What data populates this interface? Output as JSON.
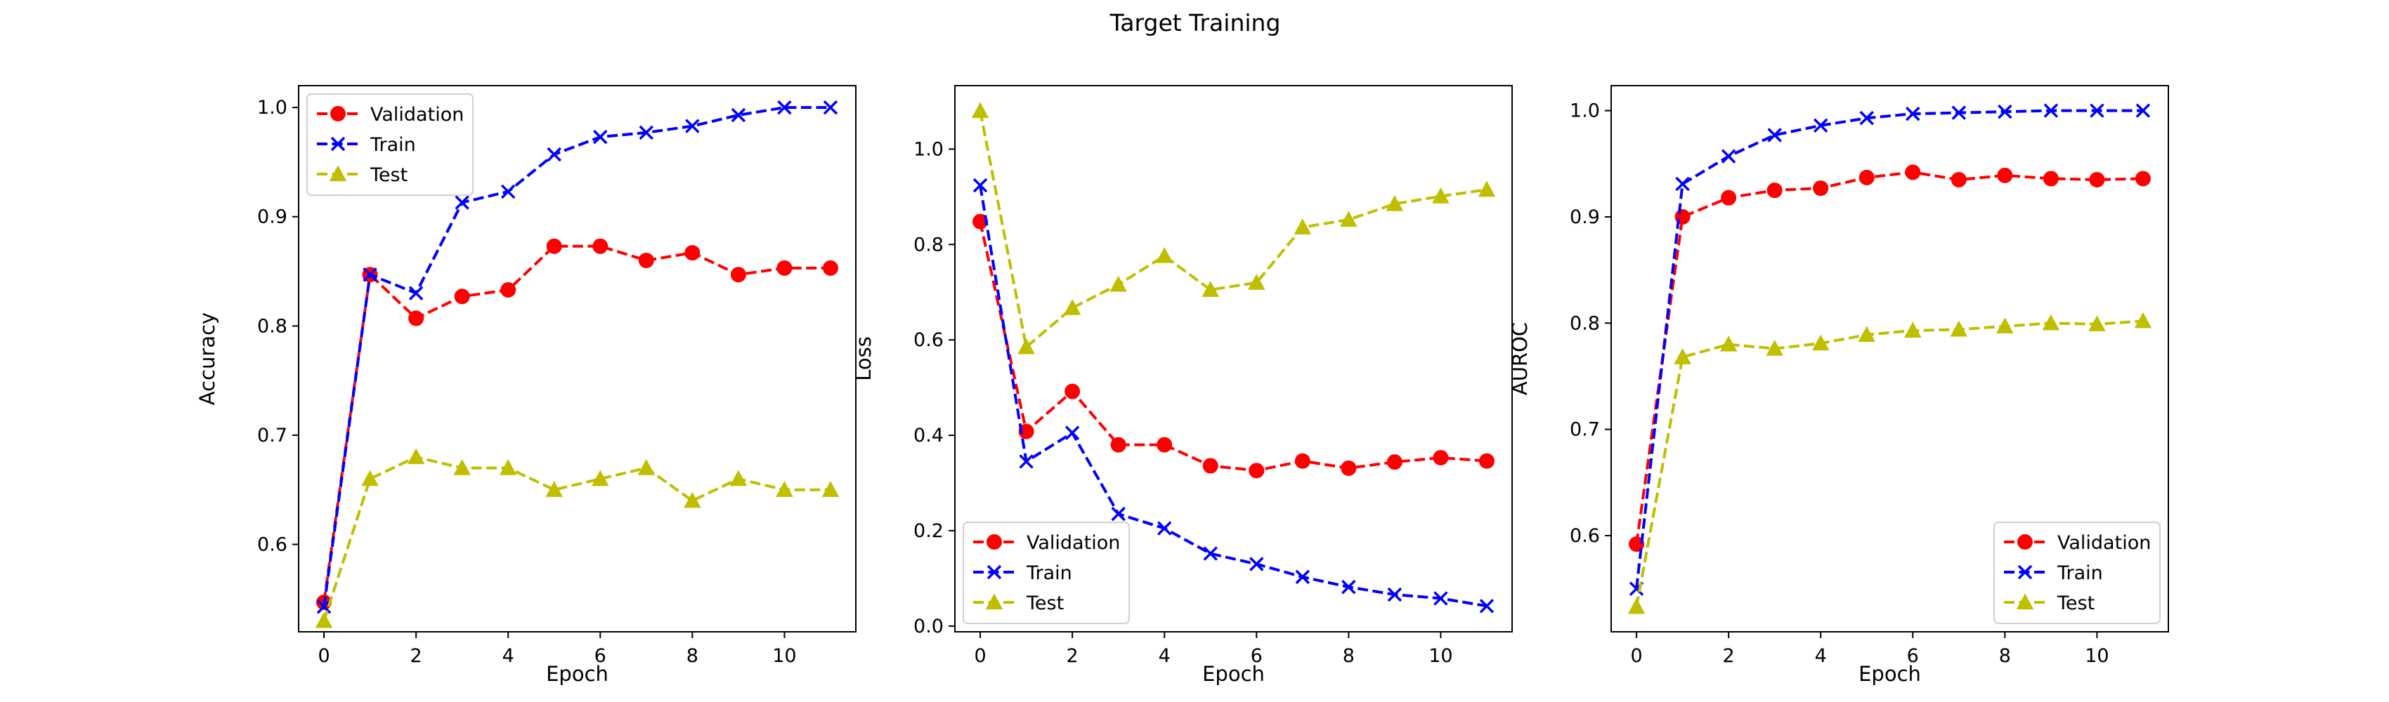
{
  "figure": {
    "title": "Target Training"
  },
  "chart_data": [
    {
      "type": "line",
      "title": "",
      "xlabel": "Epoch",
      "ylabel": "Accuracy",
      "x": [
        0,
        1,
        2,
        3,
        4,
        5,
        6,
        7,
        8,
        9,
        10,
        11
      ],
      "xlim": [
        -0.55,
        11.55
      ],
      "ylim": [
        0.52,
        1.02
      ],
      "xticks": [
        0,
        2,
        4,
        6,
        8,
        10
      ],
      "yticks": [
        0.6,
        0.7,
        0.8,
        0.9,
        1.0
      ],
      "ytick_labels": [
        "0.6",
        "0.7",
        "0.8",
        "0.9",
        "1.0"
      ],
      "grid": false,
      "legend_position": "upper-left",
      "series": [
        {
          "name": "Validation",
          "color": "#ff0000",
          "marker": "circle",
          "values": [
            0.547,
            0.847,
            0.807,
            0.827,
            0.833,
            0.873,
            0.873,
            0.86,
            0.867,
            0.847,
            0.853,
            0.853
          ]
        },
        {
          "name": "Train",
          "color": "#0000ff",
          "marker": "x",
          "values": [
            0.543,
            0.847,
            0.83,
            0.913,
            0.923,
            0.957,
            0.973,
            0.977,
            0.983,
            0.993,
            1.0,
            1.0
          ]
        },
        {
          "name": "Test",
          "color": "#bfbf00",
          "marker": "triangle",
          "values": [
            0.53,
            0.66,
            0.68,
            0.67,
            0.67,
            0.65,
            0.66,
            0.67,
            0.64,
            0.66,
            0.65,
            0.65
          ]
        }
      ]
    },
    {
      "type": "line",
      "title": "",
      "xlabel": "Epoch",
      "ylabel": "Loss",
      "x": [
        0,
        1,
        2,
        3,
        4,
        5,
        6,
        7,
        8,
        9,
        10,
        11
      ],
      "xlim": [
        -0.55,
        11.55
      ],
      "ylim": [
        -0.012,
        1.133
      ],
      "xticks": [
        0,
        2,
        4,
        6,
        8,
        10
      ],
      "yticks": [
        0.0,
        0.2,
        0.4,
        0.6,
        0.8,
        1.0
      ],
      "ytick_labels": [
        "0.0",
        "0.2",
        "0.4",
        "0.6",
        "0.8",
        "1.0"
      ],
      "grid": false,
      "legend_position": "lower-left",
      "series": [
        {
          "name": "Validation",
          "color": "#ff0000",
          "marker": "circle",
          "values": [
            0.848,
            0.408,
            0.492,
            0.38,
            0.38,
            0.336,
            0.326,
            0.346,
            0.331,
            0.344,
            0.353,
            0.346
          ]
        },
        {
          "name": "Train",
          "color": "#0000ff",
          "marker": "x",
          "values": [
            0.924,
            0.345,
            0.405,
            0.235,
            0.205,
            0.152,
            0.13,
            0.103,
            0.082,
            0.066,
            0.058,
            0.042
          ]
        },
        {
          "name": "Test",
          "color": "#bfbf00",
          "marker": "triangle",
          "values": [
            1.08,
            0.585,
            0.667,
            0.716,
            0.776,
            0.705,
            0.72,
            0.836,
            0.852,
            0.885,
            0.901,
            0.915
          ]
        }
      ]
    },
    {
      "type": "line",
      "title": "",
      "xlabel": "Epoch",
      "ylabel": "AUROC",
      "x": [
        0,
        1,
        2,
        3,
        4,
        5,
        6,
        7,
        8,
        9,
        10,
        11
      ],
      "xlim": [
        -0.55,
        11.55
      ],
      "ylim": [
        0.5095,
        1.0235
      ],
      "xticks": [
        0,
        2,
        4,
        6,
        8,
        10
      ],
      "yticks": [
        0.6,
        0.7,
        0.8,
        0.9,
        1.0
      ],
      "ytick_labels": [
        "0.6",
        "0.7",
        "0.8",
        "0.9",
        "1.0"
      ],
      "grid": false,
      "legend_position": "lower-right",
      "series": [
        {
          "name": "Validation",
          "color": "#ff0000",
          "marker": "circle",
          "values": [
            0.592,
            0.9,
            0.918,
            0.925,
            0.927,
            0.937,
            0.942,
            0.935,
            0.939,
            0.936,
            0.935,
            0.936
          ]
        },
        {
          "name": "Train",
          "color": "#0000ff",
          "marker": "x",
          "values": [
            0.55,
            0.931,
            0.957,
            0.977,
            0.986,
            0.993,
            0.997,
            0.998,
            0.999,
            1.0,
            1.0,
            1.0
          ]
        },
        {
          "name": "Test",
          "color": "#bfbf00",
          "marker": "triangle",
          "values": [
            0.533,
            0.768,
            0.78,
            0.776,
            0.781,
            0.789,
            0.793,
            0.794,
            0.797,
            0.8,
            0.799,
            0.802
          ]
        }
      ]
    }
  ]
}
